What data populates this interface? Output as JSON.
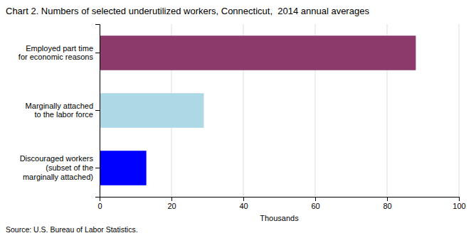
{
  "chart_data": {
    "type": "bar",
    "orientation": "horizontal",
    "title": "Chart 2. Numbers of selected underutilized workers, Connecticut,  2014 annual averages",
    "categories": [
      "Discouraged workers\n(subset of the\nmarginally attached)",
      "Marginally attached\nto the labor force",
      "Employed part time\nfor economic reasons"
    ],
    "values": [
      13.0,
      29.0,
      88.0
    ],
    "colors": [
      "#0000FF",
      "#ADD8E6",
      "#8B3A6B"
    ],
    "xlim": [
      0,
      100
    ],
    "xticks": [
      0,
      20,
      40,
      60,
      80,
      100
    ],
    "xlabel": "Thousands",
    "source": "Source: U.S. Bureau of Labor Statistics.",
    "grid": true
  }
}
